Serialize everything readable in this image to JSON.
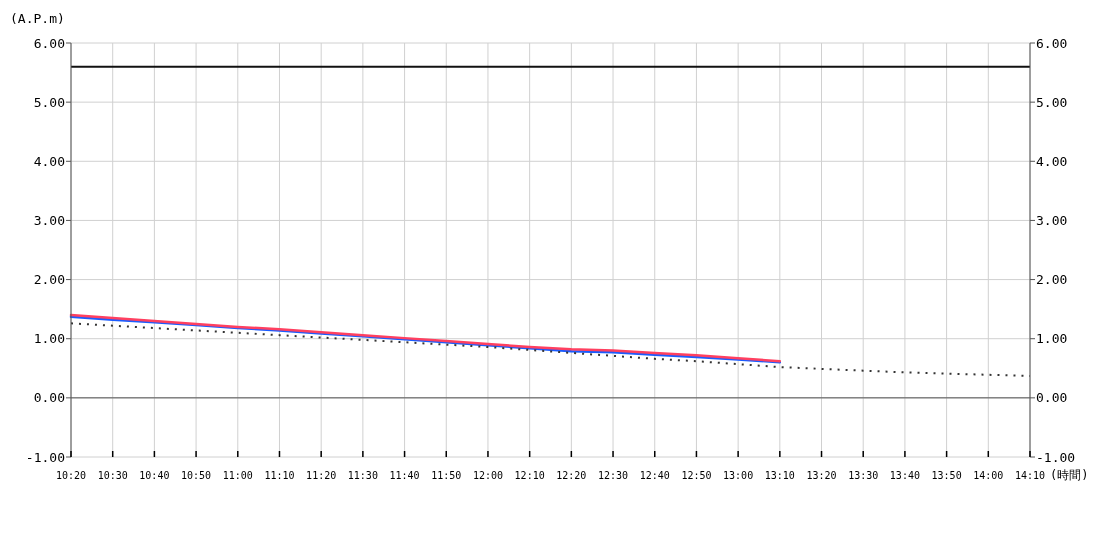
{
  "chart_data": {
    "type": "line",
    "xlabel": "(時間)",
    "ylabel": "(A.P.m)",
    "categories": [
      "10:20",
      "10:30",
      "10:40",
      "10:50",
      "11:00",
      "11:10",
      "11:20",
      "11:30",
      "11:40",
      "11:50",
      "12:00",
      "12:10",
      "12:20",
      "12:30",
      "12:40",
      "12:50",
      "13:00",
      "13:10",
      "13:20",
      "13:30",
      "13:40",
      "13:50",
      "14:00",
      "14:10"
    ],
    "series": [
      {
        "color": "#1a5cff",
        "values": [
          1.37,
          1.32,
          1.28,
          1.23,
          1.18,
          1.14,
          1.09,
          1.04,
          0.99,
          0.94,
          0.89,
          0.84,
          0.79,
          0.77,
          0.73,
          0.69,
          0.65,
          0.6,
          null,
          null,
          null,
          null,
          null,
          null
        ]
      },
      {
        "color": "#ff4060",
        "values": [
          1.4,
          1.35,
          1.3,
          1.25,
          1.2,
          1.16,
          1.11,
          1.06,
          1.01,
          0.96,
          0.91,
          0.86,
          0.82,
          0.8,
          0.76,
          0.72,
          0.67,
          0.62,
          null,
          null,
          null,
          null,
          null,
          null
        ]
      },
      {
        "color": "#333333",
        "line_style": "dotted",
        "values": [
          1.26,
          1.22,
          1.18,
          1.14,
          1.1,
          1.06,
          1.02,
          0.98,
          0.94,
          0.9,
          0.86,
          0.81,
          0.76,
          0.71,
          0.66,
          0.62,
          0.57,
          0.52,
          0.49,
          0.46,
          0.43,
          0.41,
          0.39,
          0.37
        ]
      }
    ],
    "ylim": [
      -1,
      6
    ],
    "yticks": [
      {
        "value": -1,
        "label": "-1.00"
      },
      {
        "value": 0,
        "label": "0.00"
      },
      {
        "value": 1,
        "label": "1.00"
      },
      {
        "value": 2,
        "label": "2.00"
      },
      {
        "value": 3,
        "label": "3.00"
      },
      {
        "value": 4,
        "label": "4.00"
      },
      {
        "value": 5,
        "label": "5.00"
      },
      {
        "value": 6,
        "label": "6.00"
      }
    ],
    "y2lim": [
      -1,
      6
    ],
    "y2ticks": [
      {
        "value": -1,
        "label": "-1.00"
      },
      {
        "value": 0,
        "label": "0.00"
      },
      {
        "value": 1,
        "label": "1.00"
      },
      {
        "value": 2,
        "label": "2.00"
      },
      {
        "value": 3,
        "label": "3.00"
      },
      {
        "value": 4,
        "label": "4.00"
      },
      {
        "value": 5,
        "label": "5.00"
      },
      {
        "value": 6,
        "label": "6.00"
      }
    ],
    "ref_lines": [
      {
        "axis": "y",
        "value": 5.6,
        "color": "#111111"
      },
      {
        "axis": "y",
        "value": 0,
        "color": "#555555"
      }
    ],
    "grid": true,
    "marker": "none",
    "line_style": "solid"
  }
}
